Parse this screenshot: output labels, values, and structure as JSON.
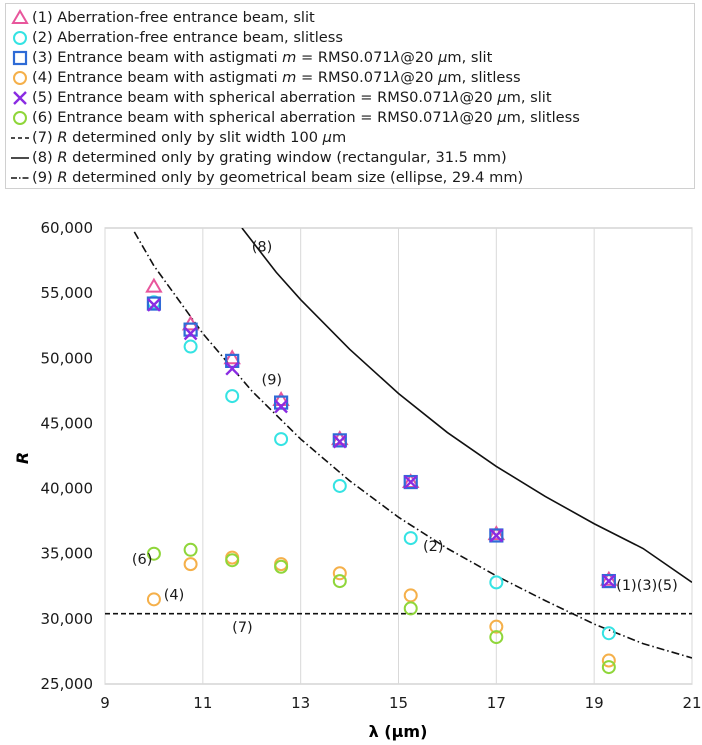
{
  "legend": [
    {
      "marker": "triangle",
      "color": "#e8569c",
      "parts": [
        {
          "t": "(1) Aberration-free entrance beam, slit"
        }
      ]
    },
    {
      "marker": "circle",
      "color": "#35e3e3",
      "parts": [
        {
          "t": "(2) Aberration-free entrance beam, slitless"
        }
      ]
    },
    {
      "marker": "square",
      "color": "#2e6bd6",
      "parts": [
        {
          "t": "(3) Entrance beam with astigmati "
        },
        {
          "t": "m",
          "i": true
        },
        {
          "t": " = RMS0.071"
        },
        {
          "t": "λ",
          "i": true
        },
        {
          "t": "@20 "
        },
        {
          "t": "μ",
          "i": true
        },
        {
          "t": "m, slit"
        }
      ]
    },
    {
      "marker": "circle",
      "color": "#f5b04a",
      "parts": [
        {
          "t": "(4) Entrance beam with astigmati "
        },
        {
          "t": "m",
          "i": true
        },
        {
          "t": " = RMS0.071"
        },
        {
          "t": "λ",
          "i": true
        },
        {
          "t": "@20 "
        },
        {
          "t": "μ",
          "i": true
        },
        {
          "t": "m, slitless"
        }
      ]
    },
    {
      "marker": "x",
      "color": "#8a2be2",
      "parts": [
        {
          "t": "(5) Entrance beam with spherical aberration = RMS0.071"
        },
        {
          "t": "λ",
          "i": true
        },
        {
          "t": "@20 "
        },
        {
          "t": "μ",
          "i": true
        },
        {
          "t": "m, slit"
        }
      ]
    },
    {
      "marker": "circle",
      "color": "#8fd63a",
      "parts": [
        {
          "t": "(6) Entrance beam with spherical aberration = RMS0.071"
        },
        {
          "t": "λ",
          "i": true
        },
        {
          "t": "@20 "
        },
        {
          "t": "μ",
          "i": true
        },
        {
          "t": "m, slitless"
        }
      ]
    },
    {
      "marker": "dash",
      "color": "#111111",
      "parts": [
        {
          "t": "(7) "
        },
        {
          "t": "R",
          "i": true
        },
        {
          "t": " determined only by slit width 100 "
        },
        {
          "t": "μ",
          "i": true
        },
        {
          "t": "m"
        }
      ]
    },
    {
      "marker": "solid",
      "color": "#111111",
      "parts": [
        {
          "t": "(8) "
        },
        {
          "t": "R",
          "i": true
        },
        {
          "t": " determined only by grating window (rectangular, 31.5 mm)"
        }
      ]
    },
    {
      "marker": "dashdot",
      "color": "#111111",
      "parts": [
        {
          "t": "(9) "
        },
        {
          "t": "R",
          "i": true
        },
        {
          "t": " determined only by geometrical beam size (ellipse, 29.4 mm)"
        }
      ]
    }
  ],
  "chart_data": {
    "type": "scatter",
    "xlabel": "λ (μm)",
    "ylabel": "R",
    "xlim": [
      9,
      21
    ],
    "ylim": [
      25000,
      60000
    ],
    "xticks": [
      9,
      11,
      13,
      15,
      17,
      19,
      21
    ],
    "yticks": [
      25000,
      30000,
      35000,
      40000,
      45000,
      50000,
      55000,
      60000
    ],
    "ytick_labels": [
      "25,000",
      "30,000",
      "35,000",
      "40,000",
      "45,000",
      "50,000",
      "55,000",
      "60,000"
    ],
    "grid": "vertical",
    "series": [
      {
        "id": "s1",
        "marker": "triangle",
        "color": "#e8569c",
        "x": [
          10.0,
          10.75,
          11.6,
          12.6,
          13.8,
          15.25,
          17.0,
          19.3
        ],
        "y": [
          55500,
          52600,
          50000,
          46800,
          43800,
          40500,
          36500,
          33000
        ]
      },
      {
        "id": "s2",
        "marker": "circle",
        "color": "#35e3e3",
        "x": [
          10.0,
          10.75,
          11.6,
          12.6,
          13.8,
          15.25,
          17.0,
          19.3
        ],
        "y": [
          54300,
          50900,
          47100,
          43800,
          40200,
          36200,
          32800,
          28900
        ]
      },
      {
        "id": "s3",
        "marker": "square",
        "color": "#2e6bd6",
        "x": [
          10.0,
          10.75,
          11.6,
          12.6,
          13.8,
          15.25,
          17.0,
          19.3
        ],
        "y": [
          54200,
          52200,
          49800,
          46600,
          43700,
          40500,
          36400,
          32900
        ]
      },
      {
        "id": "s4",
        "marker": "circle",
        "color": "#f5b04a",
        "x": [
          10.0,
          10.75,
          11.6,
          12.6,
          13.8,
          15.25,
          17.0,
          19.3
        ],
        "y": [
          31500,
          34200,
          34700,
          34200,
          33500,
          31800,
          29400,
          26800
        ]
      },
      {
        "id": "s5",
        "marker": "x",
        "color": "#8a2be2",
        "x": [
          10.0,
          10.75,
          11.6,
          12.6,
          13.8,
          15.25,
          17.0,
          19.3
        ],
        "y": [
          54100,
          51900,
          49200,
          46300,
          43600,
          40500,
          36400,
          32900
        ]
      },
      {
        "id": "s6",
        "marker": "circle",
        "color": "#8fd63a",
        "x": [
          10.0,
          10.75,
          11.6,
          12.6,
          13.8,
          15.25,
          17.0,
          19.3
        ],
        "y": [
          35000,
          35300,
          34500,
          34000,
          32900,
          30800,
          28600,
          26300
        ]
      }
    ],
    "lines": [
      {
        "id": "line7",
        "style": "dash",
        "x": [
          9,
          21
        ],
        "y": [
          30400,
          30400
        ]
      },
      {
        "id": "line8",
        "style": "solid",
        "x": [
          11.8,
          12.5,
          13,
          14,
          15,
          16,
          17,
          18,
          19,
          20,
          21
        ],
        "y": [
          60000,
          56600,
          54500,
          50700,
          47300,
          44300,
          41700,
          39400,
          37300,
          35400,
          32800
        ]
      },
      {
        "id": "line9",
        "style": "dashdot",
        "x": [
          9.6,
          10,
          11,
          12,
          13,
          14,
          15,
          16,
          17,
          18,
          19,
          20,
          21
        ],
        "y": [
          59700,
          57100,
          51900,
          47500,
          43800,
          40600,
          37800,
          35400,
          33300,
          31400,
          29600,
          28100,
          27000
        ]
      }
    ],
    "annotations": [
      {
        "text": "(8)",
        "x": 12.0,
        "y": 58200
      },
      {
        "text": "(9)",
        "x": 12.2,
        "y": 48000
      },
      {
        "text": "(2)",
        "x": 15.5,
        "y": 35200
      },
      {
        "text": "(6)",
        "x": 9.55,
        "y": 34200
      },
      {
        "text": "(4)",
        "x": 10.2,
        "y": 31500
      },
      {
        "text": "(7)",
        "x": 11.6,
        "y": 29000
      },
      {
        "text": "(1)(3)(5)",
        "x": 19.45,
        "y": 32200
      }
    ]
  }
}
